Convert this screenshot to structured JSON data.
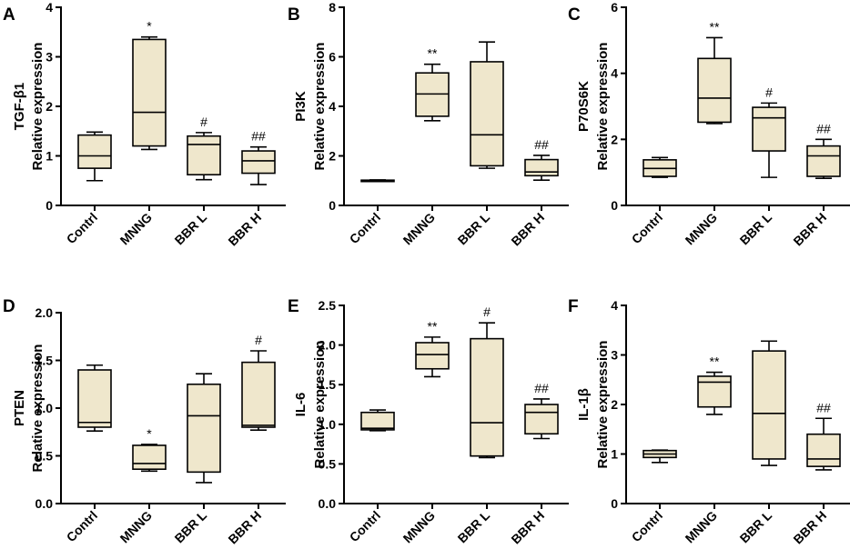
{
  "box_fill": "#efe7cc",
  "categories": [
    "Contrl",
    "MNNG",
    "BBR L",
    "BBR H"
  ],
  "chart_data": [
    {
      "type": "boxplot",
      "panel": "A",
      "ylabel": [
        "TGF-β1",
        "Relative expression"
      ],
      "ylim": [
        0,
        4
      ],
      "yticks": [
        "0",
        "1",
        "2",
        "3",
        "4"
      ],
      "categories": [
        "Contrl",
        "MNNG",
        "BBR L",
        "BBR H"
      ],
      "boxes": [
        {
          "min": 0.5,
          "q1": 0.75,
          "median": 1.0,
          "q3": 1.42,
          "max": 1.48,
          "sig": ""
        },
        {
          "min": 1.13,
          "q1": 1.2,
          "median": 1.88,
          "q3": 3.35,
          "max": 3.4,
          "sig": "*"
        },
        {
          "min": 0.52,
          "q1": 0.62,
          "median": 1.23,
          "q3": 1.4,
          "max": 1.47,
          "sig": "#"
        },
        {
          "min": 0.42,
          "q1": 0.65,
          "median": 0.9,
          "q3": 1.1,
          "max": 1.18,
          "sig": "##"
        }
      ]
    },
    {
      "type": "boxplot",
      "panel": "B",
      "ylabel": [
        "PI3K",
        "Relative expression"
      ],
      "ylim": [
        0,
        8
      ],
      "yticks": [
        "0",
        "2",
        "4",
        "6",
        "8"
      ],
      "categories": [
        "Contrl",
        "MNNG",
        "BBR L",
        "BBR H"
      ],
      "boxes": [
        {
          "min": 0.97,
          "q1": 0.98,
          "median": 1.0,
          "q3": 1.02,
          "max": 1.03,
          "sig": ""
        },
        {
          "min": 3.42,
          "q1": 3.6,
          "median": 4.5,
          "q3": 5.35,
          "max": 5.7,
          "sig": "**"
        },
        {
          "min": 1.5,
          "q1": 1.6,
          "median": 2.85,
          "q3": 5.8,
          "max": 6.6,
          "sig": ""
        },
        {
          "min": 1.02,
          "q1": 1.2,
          "median": 1.35,
          "q3": 1.85,
          "max": 2.02,
          "sig": "##"
        }
      ]
    },
    {
      "type": "boxplot",
      "panel": "C",
      "ylabel": [
        "P70S6K",
        "Relative expression"
      ],
      "ylim": [
        0,
        6
      ],
      "yticks": [
        "0",
        "2",
        "4",
        "6"
      ],
      "categories": [
        "Contrl",
        "MNNG",
        "BBR L",
        "BBR H"
      ],
      "boxes": [
        {
          "min": 0.85,
          "q1": 0.88,
          "median": 1.12,
          "q3": 1.38,
          "max": 1.45,
          "sig": ""
        },
        {
          "min": 2.48,
          "q1": 2.52,
          "median": 3.25,
          "q3": 4.45,
          "max": 5.08,
          "sig": "**"
        },
        {
          "min": 0.85,
          "q1": 1.65,
          "median": 2.65,
          "q3": 2.97,
          "max": 3.1,
          "sig": "#"
        },
        {
          "min": 0.82,
          "q1": 0.88,
          "median": 1.5,
          "q3": 1.8,
          "max": 2.0,
          "sig": "##"
        }
      ]
    },
    {
      "type": "boxplot",
      "panel": "D",
      "ylabel": [
        "PTEN",
        "Relative expression"
      ],
      "ylim": [
        0,
        2.0
      ],
      "yticks": [
        "0.0",
        "0.5",
        "1.0",
        "1.5",
        "2.0"
      ],
      "categories": [
        "Contrl",
        "MNNG",
        "BBR L",
        "BBR H"
      ],
      "boxes": [
        {
          "min": 0.76,
          "q1": 0.8,
          "median": 0.85,
          "q3": 1.4,
          "max": 1.45,
          "sig": ""
        },
        {
          "min": 0.34,
          "q1": 0.36,
          "median": 0.42,
          "q3": 0.61,
          "max": 0.62,
          "sig": "*"
        },
        {
          "min": 0.22,
          "q1": 0.33,
          "median": 0.92,
          "q3": 1.25,
          "max": 1.36,
          "sig": ""
        },
        {
          "min": 0.77,
          "q1": 0.8,
          "median": 0.82,
          "q3": 1.48,
          "max": 1.6,
          "sig": "#"
        }
      ]
    },
    {
      "type": "boxplot",
      "panel": "E",
      "ylabel": [
        "IL-6",
        "Relative expression"
      ],
      "ylim": [
        0,
        2.5
      ],
      "yticks": [
        "0.0",
        "0.5",
        "1.0",
        "1.5",
        "2.0",
        "2.5"
      ],
      "categories": [
        "Contrl",
        "MNNG",
        "BBR L",
        "BBR H"
      ],
      "boxes": [
        {
          "min": 0.92,
          "q1": 0.93,
          "median": 0.95,
          "q3": 1.15,
          "max": 1.18,
          "sig": ""
        },
        {
          "min": 1.6,
          "q1": 1.7,
          "median": 1.88,
          "q3": 2.03,
          "max": 2.1,
          "sig": "**"
        },
        {
          "min": 0.58,
          "q1": 0.6,
          "median": 1.02,
          "q3": 2.08,
          "max": 2.28,
          "sig": "#"
        },
        {
          "min": 0.82,
          "q1": 0.88,
          "median": 1.15,
          "q3": 1.25,
          "max": 1.32,
          "sig": "##"
        }
      ]
    },
    {
      "type": "boxplot",
      "panel": "F",
      "ylabel": [
        "IL-1β",
        "Relative expression"
      ],
      "ylim": [
        0,
        4
      ],
      "yticks": [
        "0",
        "1",
        "2",
        "3",
        "4"
      ],
      "categories": [
        "Contrl",
        "MNNG",
        "BBR L",
        "BBR H"
      ],
      "boxes": [
        {
          "min": 0.83,
          "q1": 0.93,
          "median": 1.0,
          "q3": 1.07,
          "max": 1.08,
          "sig": ""
        },
        {
          "min": 1.8,
          "q1": 1.95,
          "median": 2.45,
          "q3": 2.57,
          "max": 2.65,
          "sig": "**"
        },
        {
          "min": 0.77,
          "q1": 0.9,
          "median": 1.82,
          "q3": 3.08,
          "max": 3.28,
          "sig": ""
        },
        {
          "min": 0.68,
          "q1": 0.75,
          "median": 0.9,
          "q3": 1.4,
          "max": 1.72,
          "sig": "##"
        }
      ]
    }
  ]
}
